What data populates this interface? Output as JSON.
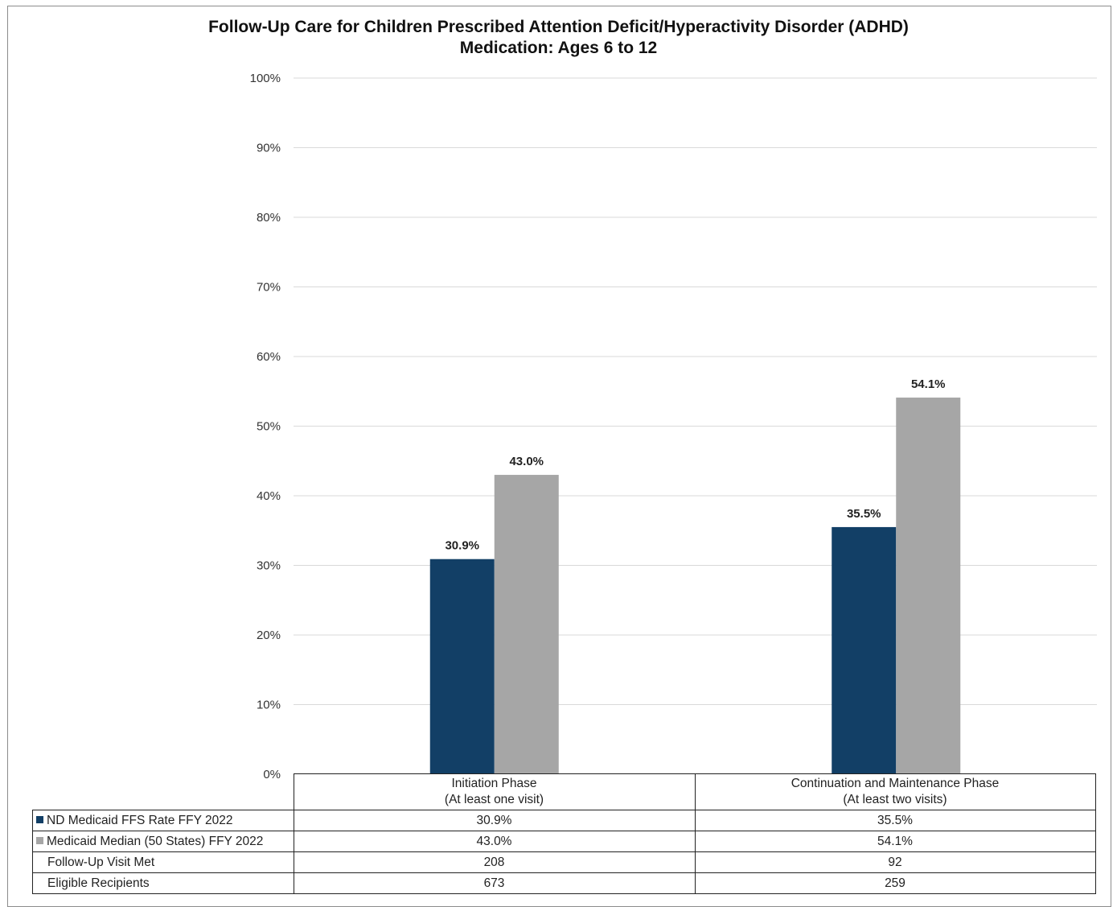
{
  "chart_data": {
    "type": "bar",
    "title": "Follow-Up Care for Children Prescribed Attention Deficit/Hyperactivity Disorder (ADHD)",
    "subtitle": "Medication: Ages 6 to 12",
    "ylim": [
      0,
      100
    ],
    "ytick_labels": [
      "0%",
      "10%",
      "20%",
      "30%",
      "40%",
      "50%",
      "60%",
      "70%",
      "80%",
      "90%",
      "100%"
    ],
    "grid": true,
    "categories": [
      {
        "line1": "Initiation Phase",
        "line2": "(At least one visit)"
      },
      {
        "line1": "Continuation and Maintenance Phase",
        "line2": "(At least two visits)"
      }
    ],
    "series": [
      {
        "name": "ND Medicaid FFS Rate FFY 2022",
        "color": "#123f66",
        "values": [
          30.9,
          35.5
        ],
        "labels": [
          "30.9%",
          "35.5%"
        ]
      },
      {
        "name": "Medicaid Median (50 States) FFY 2022",
        "color": "#a6a6a6",
        "values": [
          43.0,
          54.1
        ],
        "labels": [
          "43.0%",
          "54.1%"
        ]
      }
    ],
    "table_rows": [
      {
        "label": "ND Medicaid FFS Rate FFY 2022",
        "values": [
          "30.9%",
          "35.5%"
        ],
        "swatch": "#123f66"
      },
      {
        "label": "Medicaid Median (50 States) FFY 2022",
        "values": [
          "43.0%",
          "54.1%"
        ],
        "swatch": "#a6a6a6"
      },
      {
        "label": "Follow-Up Visit Met",
        "values": [
          "208",
          "92"
        ]
      },
      {
        "label": "Eligible Recipients",
        "values": [
          "673",
          "259"
        ]
      }
    ]
  }
}
